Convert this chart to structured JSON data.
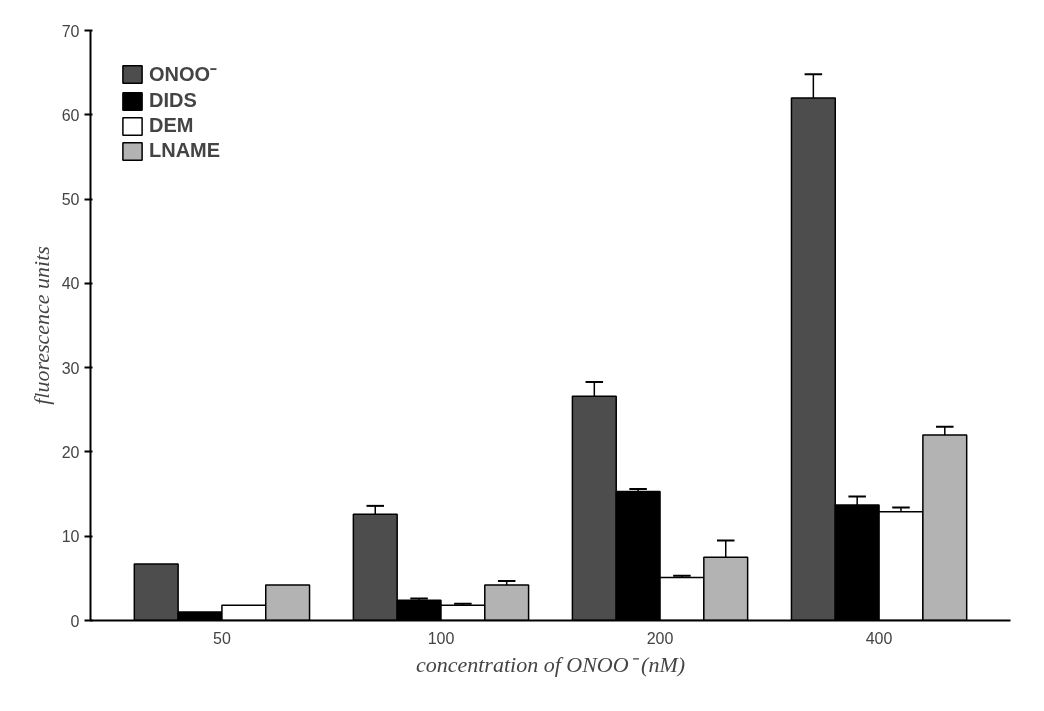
{
  "chart_data": {
    "type": "bar",
    "xlabel": "concentration of ONOO⁻ (nM)",
    "ylabel": "fluorescence units",
    "categories": [
      "50",
      "100",
      "200",
      "400"
    ],
    "series": [
      {
        "name": "ONOO⁻",
        "color": "#4d4d4d",
        "values": [
          6.7,
          12.6,
          26.6,
          62.0
        ],
        "errors": [
          null,
          [
            12.6,
            13.6
          ],
          [
            26.6,
            28.3
          ],
          [
            62.0,
            64.8
          ]
        ]
      },
      {
        "name": "DIDS",
        "color": "#000000",
        "values": [
          1.0,
          2.4,
          15.3,
          13.7
        ],
        "errors": [
          null,
          [
            2.4,
            2.6
          ],
          [
            15.3,
            15.6
          ],
          [
            13.7,
            14.7
          ]
        ]
      },
      {
        "name": "DEM",
        "color": "#ffffff",
        "values": [
          1.8,
          1.8,
          5.1,
          12.9
        ],
        "errors": [
          null,
          [
            1.8,
            2.0
          ],
          [
            5.1,
            5.3
          ],
          [
            12.9,
            13.4
          ]
        ]
      },
      {
        "name": "LNAME",
        "color": "#b3b3b3",
        "values": [
          4.2,
          4.2,
          7.5,
          22.0
        ],
        "errors": [
          null,
          [
            4.2,
            4.7
          ],
          [
            7.5,
            9.5
          ],
          [
            22.0,
            23.0
          ]
        ]
      }
    ],
    "ylim": [
      0,
      70
    ],
    "yticks": [
      0,
      10,
      20,
      30,
      40,
      50,
      60,
      70
    ],
    "grid": false,
    "legend": "top left"
  }
}
